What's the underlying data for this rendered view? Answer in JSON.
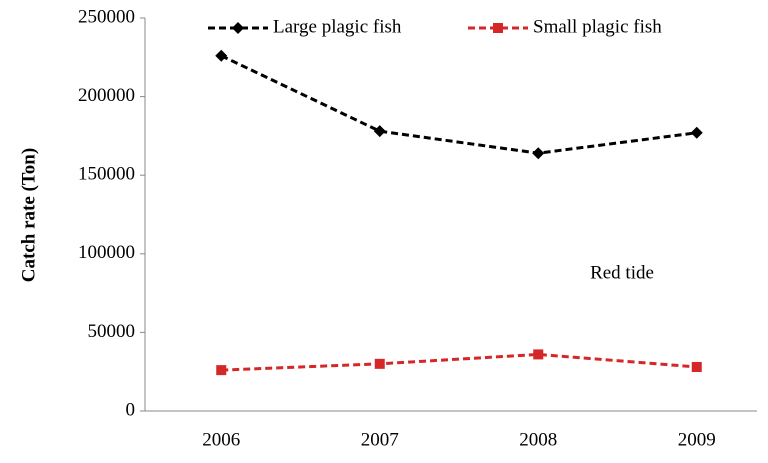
{
  "chart_data": {
    "type": "line",
    "y_label": "Catch rate (Ton)",
    "annotation": "Red tide",
    "categories": [
      "2006",
      "2007",
      "2008",
      "2009"
    ],
    "series": [
      {
        "name": "Large plagic fish",
        "color": "#000000",
        "marker": "diamond",
        "line_style": "dashed",
        "values": [
          226000,
          178000,
          164000,
          177000
        ]
      },
      {
        "name": "Small plagic fish",
        "color": "#d62728",
        "marker": "square",
        "line_style": "dashed",
        "values": [
          26000,
          30000,
          36000,
          28000
        ]
      }
    ],
    "ylim": [
      0,
      250000
    ],
    "yticks": [
      0,
      50000,
      100000,
      150000,
      200000,
      250000
    ],
    "grid": false
  }
}
